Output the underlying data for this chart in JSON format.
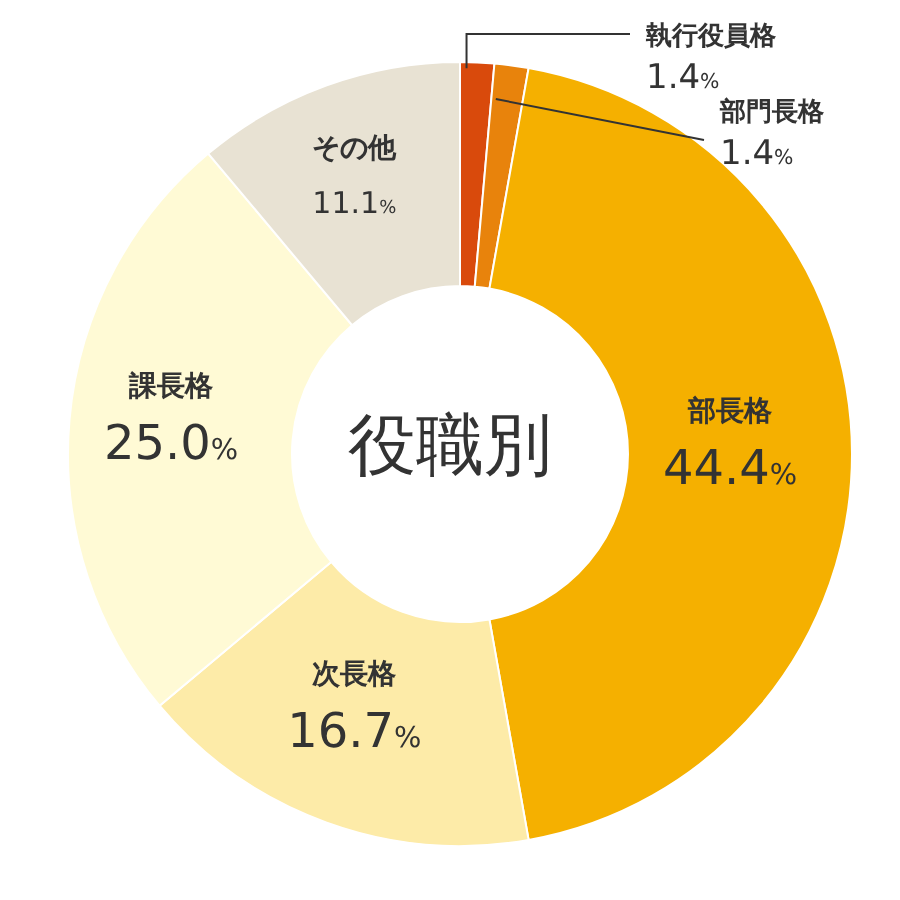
{
  "chart_data": {
    "type": "donut",
    "title": "役職別",
    "categories": [
      "執行役員格",
      "部門長格",
      "部長格",
      "次長格",
      "課長格",
      "その他"
    ],
    "values": [
      1.4,
      1.4,
      44.4,
      16.7,
      25.0,
      11.1
    ],
    "colors": [
      "#d94a0c",
      "#e8830c",
      "#f5b000",
      "#fdeba8",
      "#fffad5",
      "#e8e2d3"
    ],
    "value_labels": [
      "1.4%",
      "1.4%",
      "44.4%",
      "16.7%",
      "25.0%",
      "11.1%"
    ],
    "legend": false
  }
}
